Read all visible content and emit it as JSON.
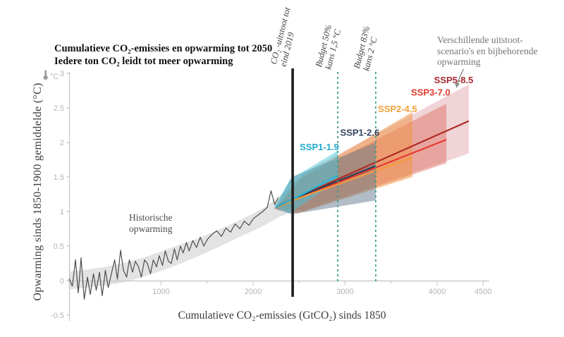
{
  "chart_data": {
    "type": "area",
    "title": "Cumulatieve CO₂-emissies en opwarming tot 2050",
    "subtitle": "Iedere ton CO₂ leidt tot meer opwarming",
    "xlabel": "Cumulatieve CO₂-emissies (GtCO₂) sinds 1850",
    "ylabel": "Opwarming sinds 1850-1900 gemiddelde (°C)",
    "y_unit": "°C",
    "xlim": [
      0,
      4560
    ],
    "ylim": [
      -0.5,
      3
    ],
    "x_major_ticks": [
      1000,
      2000,
      3000,
      4000,
      4500
    ],
    "x_minor_ticks": [
      500,
      1500,
      2500,
      3500
    ],
    "y_ticks": [
      -0.5,
      0,
      0.5,
      1,
      1.5,
      2,
      2.5,
      3
    ],
    "grid": false,
    "colors": {
      "axis": "#c9c9c9",
      "tick_text": "#b3b3b3",
      "historical_line": "#4d4d4d",
      "historical_band": "#cccccc",
      "annotation_text": "#767676",
      "arrow": "#8f8f8f"
    },
    "historical": {
      "label": "Historische\nopwarming",
      "band": [
        [
          0,
          -0.13,
          0.13
        ],
        [
          200,
          -0.1,
          0.16
        ],
        [
          400,
          -0.07,
          0.2
        ],
        [
          600,
          -0.02,
          0.26
        ],
        [
          800,
          0.05,
          0.33
        ],
        [
          1000,
          0.14,
          0.42
        ],
        [
          1200,
          0.24,
          0.52
        ],
        [
          1400,
          0.35,
          0.61
        ],
        [
          1600,
          0.47,
          0.72
        ],
        [
          1800,
          0.6,
          0.84
        ],
        [
          2000,
          0.72,
          0.97
        ],
        [
          2150,
          0.82,
          1.08
        ],
        [
          2300,
          0.93,
          1.24
        ],
        [
          2430,
          1.0,
          1.38
        ],
        [
          2530,
          1.05,
          1.46
        ]
      ],
      "line": [
        [
          0,
          0.03
        ],
        [
          35,
          -0.08
        ],
        [
          70,
          0.3
        ],
        [
          100,
          -0.18
        ],
        [
          130,
          0.33
        ],
        [
          165,
          -0.27
        ],
        [
          200,
          0.05
        ],
        [
          230,
          -0.2
        ],
        [
          265,
          0.1
        ],
        [
          295,
          -0.14
        ],
        [
          330,
          0.12
        ],
        [
          360,
          -0.22
        ],
        [
          395,
          0.15
        ],
        [
          425,
          -0.1
        ],
        [
          460,
          0.1
        ],
        [
          495,
          0.3
        ],
        [
          525,
          0.02
        ],
        [
          560,
          0.44
        ],
        [
          590,
          0.15
        ],
        [
          625,
          0.05
        ],
        [
          655,
          0.3
        ],
        [
          690,
          0.12
        ],
        [
          720,
          0.28
        ],
        [
          755,
          0.2
        ],
        [
          785,
          0.05
        ],
        [
          820,
          0.3
        ],
        [
          850,
          0.25
        ],
        [
          885,
          0.1
        ],
        [
          915,
          0.3
        ],
        [
          950,
          0.2
        ],
        [
          980,
          0.36
        ],
        [
          1015,
          0.22
        ],
        [
          1045,
          0.43
        ],
        [
          1080,
          0.28
        ],
        [
          1110,
          0.25
        ],
        [
          1145,
          0.46
        ],
        [
          1175,
          0.3
        ],
        [
          1210,
          0.5
        ],
        [
          1240,
          0.4
        ],
        [
          1275,
          0.55
        ],
        [
          1305,
          0.43
        ],
        [
          1345,
          0.58
        ],
        [
          1385,
          0.48
        ],
        [
          1425,
          0.63
        ],
        [
          1465,
          0.5
        ],
        [
          1505,
          0.6
        ],
        [
          1555,
          0.67
        ],
        [
          1605,
          0.72
        ],
        [
          1655,
          0.64
        ],
        [
          1705,
          0.76
        ],
        [
          1755,
          0.7
        ],
        [
          1805,
          0.82
        ],
        [
          1855,
          0.75
        ],
        [
          1905,
          0.86
        ],
        [
          1955,
          0.8
        ],
        [
          2005,
          0.9
        ],
        [
          2055,
          0.95
        ],
        [
          2105,
          1.0
        ],
        [
          2155,
          1.06
        ],
        [
          2195,
          1.3
        ],
        [
          2235,
          1.1
        ],
        [
          2275,
          1.2
        ]
      ]
    },
    "vertical_markers": [
      {
        "label": "CO₂ -uitstoot tot\neind 2019",
        "x": 2430,
        "style": "solid",
        "color": "#1c1c1c"
      },
      {
        "label": "Budget 50%\nkans 1,5 °C",
        "x": 2920,
        "style": "dashed",
        "color": "#3aa183"
      },
      {
        "label": "Budget 83%\nkans 2 °C",
        "x": 3333,
        "style": "dashed",
        "color": "#3aa183"
      }
    ],
    "scenarios": [
      {
        "name": "SSP1-1.9",
        "line_color": "#27b5d2",
        "fill_color": "#45c4da",
        "fill_opacity": 0.5,
        "fan": [
          [
            2230,
            1.06
          ],
          [
            2400,
            1.46
          ],
          [
            2920,
            1.88
          ],
          [
            2920,
            1.44
          ],
          [
            2400,
            0.98
          ]
        ],
        "central": [
          [
            2250,
            1.06
          ],
          [
            2450,
            1.19
          ],
          [
            2920,
            1.52
          ]
        ],
        "label_color": "#1fa9cc",
        "label_pos": [
          2720,
          1.93
        ]
      },
      {
        "name": "SSP1-2.6",
        "line_color": "#2f4057",
        "fill_color": "#64798e",
        "fill_opacity": 0.5,
        "fan": [
          [
            2230,
            1.04
          ],
          [
            2420,
            1.5
          ],
          [
            3333,
            2.0
          ],
          [
            3333,
            1.16
          ],
          [
            2420,
            0.96
          ]
        ],
        "central": [
          [
            2250,
            1.06
          ],
          [
            2450,
            1.19
          ],
          [
            3333,
            1.66
          ]
        ],
        "label_color": "#33455e",
        "label_pos": [
          3160,
          2.14
        ]
      },
      {
        "name": "SSP2-4.5",
        "line_color": "#f5993d",
        "fill_color": "#ef9549",
        "fill_opacity": 0.55,
        "fan": [
          [
            2240,
            1.04
          ],
          [
            2480,
            1.46
          ],
          [
            3732,
            2.44
          ],
          [
            3732,
            1.5
          ],
          [
            2480,
            0.97
          ]
        ],
        "central": [
          [
            2250,
            1.05
          ],
          [
            2450,
            1.17
          ],
          [
            3732,
            1.78
          ]
        ],
        "label_color": "#f2a23a",
        "label_pos": [
          3570,
          2.48
        ]
      },
      {
        "name": "SSP3-7.0",
        "line_color": "#e8392e",
        "fill_color": "#e0766a",
        "fill_opacity": 0.5,
        "fan": [
          [
            2250,
            1.04
          ],
          [
            2550,
            1.5
          ],
          [
            4100,
            2.56
          ],
          [
            4100,
            1.7
          ],
          [
            2550,
            1.0
          ]
        ],
        "central": [
          [
            2250,
            1.05
          ],
          [
            2450,
            1.17
          ],
          [
            4100,
            2.04
          ]
        ],
        "label_color": "#e23a2e",
        "label_pos": [
          3930,
          2.72
        ]
      },
      {
        "name": "SSP5-8.5",
        "line_color": "#ae2a25",
        "fill_color": "#e4aab0",
        "fill_opacity": 0.5,
        "fan": [
          [
            2250,
            1.06
          ],
          [
            2550,
            1.56
          ],
          [
            4345,
            2.84
          ],
          [
            4345,
            1.84
          ],
          [
            2550,
            1.02
          ]
        ],
        "central": [
          [
            2260,
            1.07
          ],
          [
            2450,
            1.19
          ],
          [
            4345,
            2.31
          ]
        ],
        "label_color": "#a62a30",
        "label_pos": [
          4180,
          2.9
        ]
      }
    ],
    "annotation": {
      "text": "Verschillende uitstoot-\nscenario's en bijbehorende\nopwarming"
    },
    "legend_position": "none"
  }
}
